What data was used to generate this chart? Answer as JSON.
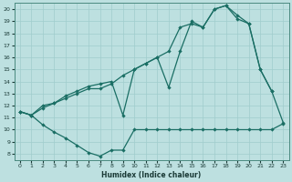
{
  "xlabel": "Humidex (Indice chaleur)",
  "bg_color": "#bde0e0",
  "grid_color": "#a0cccc",
  "line_color": "#1a6e64",
  "xlim": [
    -0.5,
    23.5
  ],
  "ylim": [
    7.5,
    20.5
  ],
  "yticks": [
    8,
    9,
    10,
    11,
    12,
    13,
    14,
    15,
    16,
    17,
    18,
    19,
    20
  ],
  "xticks": [
    0,
    1,
    2,
    3,
    4,
    5,
    6,
    7,
    8,
    9,
    10,
    11,
    12,
    13,
    14,
    15,
    16,
    17,
    18,
    19,
    20,
    21,
    22,
    23
  ],
  "line_low_x": [
    0,
    1,
    2,
    3,
    4,
    5,
    6,
    7,
    8,
    9,
    10,
    11,
    12,
    13,
    14,
    15,
    16,
    17,
    18,
    19,
    20,
    21,
    22,
    23
  ],
  "line_low_y": [
    11.5,
    11.2,
    10.4,
    9.8,
    9.3,
    8.7,
    8.1,
    7.8,
    8.3,
    8.3,
    10.0,
    10.0,
    10.0,
    10.0,
    10.0,
    10.0,
    10.0,
    10.0,
    10.0,
    10.0,
    10.0,
    10.0,
    10.0,
    10.5
  ],
  "line_mid_x": [
    0,
    1,
    2,
    3,
    4,
    5,
    6,
    7,
    8,
    9,
    10,
    11,
    12,
    13,
    14,
    15,
    16,
    17,
    18,
    19,
    20,
    21,
    22
  ],
  "line_mid_y": [
    11.5,
    11.2,
    11.8,
    12.2,
    12.6,
    13.0,
    13.4,
    13.4,
    13.8,
    14.5,
    15.0,
    15.5,
    16.0,
    16.5,
    18.5,
    18.8,
    18.5,
    20.0,
    20.3,
    19.2,
    18.8,
    15.0,
    13.2
  ],
  "line_top_x": [
    0,
    1,
    2,
    3,
    4,
    5,
    6,
    7,
    8,
    9,
    10,
    11,
    12,
    13,
    14,
    15,
    16,
    17,
    18,
    19,
    20,
    21,
    22,
    23
  ],
  "line_top_y": [
    11.5,
    11.2,
    12.0,
    12.2,
    12.8,
    13.2,
    13.6,
    13.8,
    14.0,
    11.2,
    15.0,
    15.5,
    16.0,
    13.5,
    16.5,
    19.0,
    18.5,
    20.0,
    20.3,
    19.5,
    18.8,
    15.0,
    13.2,
    10.6
  ]
}
